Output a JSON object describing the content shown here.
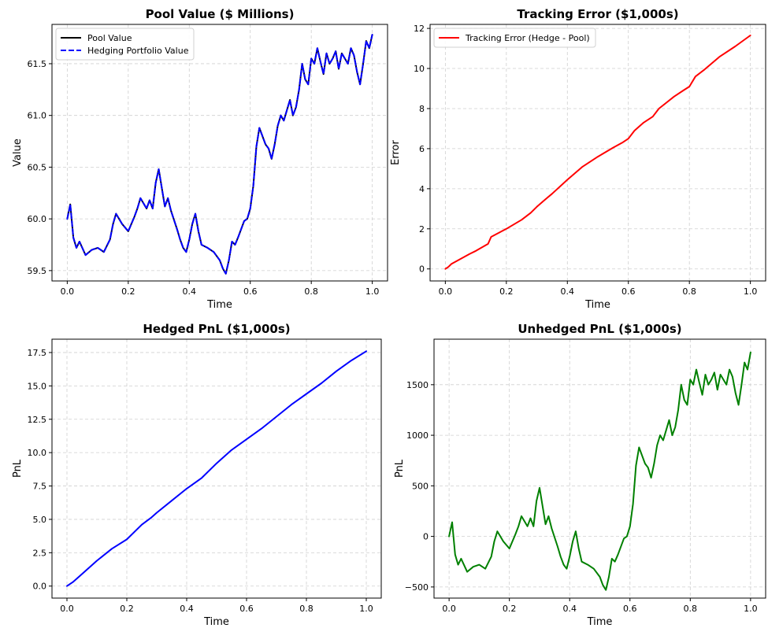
{
  "chart_data": [
    {
      "type": "line",
      "title": "Pool Value ($ Millions)",
      "xlabel": "Time",
      "ylabel": "Value",
      "xlim": [
        -0.05,
        1.05
      ],
      "ylim": [
        59.4,
        61.88
      ],
      "xticks": [
        0.0,
        0.2,
        0.4,
        0.6,
        0.8,
        1.0
      ],
      "xtick_labels": [
        "0.0",
        "0.2",
        "0.4",
        "0.6",
        "0.8",
        "1.0"
      ],
      "yticks": [
        59.5,
        60.0,
        60.5,
        61.0,
        61.5
      ],
      "ytick_labels": [
        "59.5",
        "60.0",
        "60.5",
        "61.0",
        "61.5"
      ],
      "grid": true,
      "legend_position": "top-left",
      "series": [
        {
          "name": "Pool Value",
          "color": "#000000",
          "style": "solid",
          "x": [
            0.0,
            0.01,
            0.02,
            0.03,
            0.04,
            0.06,
            0.08,
            0.1,
            0.12,
            0.14,
            0.15,
            0.16,
            0.18,
            0.2,
            0.22,
            0.23,
            0.24,
            0.26,
            0.27,
            0.28,
            0.29,
            0.3,
            0.31,
            0.32,
            0.33,
            0.34,
            0.36,
            0.37,
            0.38,
            0.39,
            0.4,
            0.41,
            0.42,
            0.43,
            0.44,
            0.46,
            0.48,
            0.5,
            0.51,
            0.52,
            0.53,
            0.54,
            0.55,
            0.56,
            0.58,
            0.59,
            0.6,
            0.61,
            0.62,
            0.63,
            0.64,
            0.65,
            0.66,
            0.67,
            0.68,
            0.69,
            0.7,
            0.71,
            0.72,
            0.73,
            0.74,
            0.75,
            0.76,
            0.77,
            0.78,
            0.79,
            0.8,
            0.81,
            0.82,
            0.83,
            0.84,
            0.85,
            0.86,
            0.87,
            0.88,
            0.89,
            0.9,
            0.91,
            0.92,
            0.93,
            0.94,
            0.95,
            0.96,
            0.97,
            0.98,
            0.99,
            1.0
          ],
          "y": [
            60.0,
            60.14,
            59.82,
            59.72,
            59.78,
            59.65,
            59.7,
            59.72,
            59.68,
            59.8,
            59.95,
            60.05,
            59.95,
            59.88,
            60.02,
            60.1,
            60.2,
            60.1,
            60.18,
            60.1,
            60.35,
            60.48,
            60.3,
            60.12,
            60.2,
            60.08,
            59.9,
            59.8,
            59.72,
            59.68,
            59.8,
            59.95,
            60.05,
            59.88,
            59.75,
            59.72,
            59.68,
            59.6,
            59.52,
            59.47,
            59.6,
            59.78,
            59.75,
            59.82,
            59.98,
            60.0,
            60.1,
            60.32,
            60.7,
            60.88,
            60.8,
            60.72,
            60.68,
            60.58,
            60.72,
            60.9,
            61.0,
            60.95,
            61.05,
            61.15,
            61.0,
            61.08,
            61.25,
            61.5,
            61.35,
            61.3,
            61.55,
            61.5,
            61.65,
            61.52,
            61.4,
            61.6,
            61.5,
            61.55,
            61.62,
            61.45,
            61.6,
            61.55,
            61.5,
            61.65,
            61.58,
            61.42,
            61.3,
            61.5,
            61.72,
            61.65,
            61.78
          ]
        },
        {
          "name": "Hedging Portfolio Value",
          "color": "#0000ff",
          "style": "dashed",
          "x": [
            0.0,
            0.01,
            0.02,
            0.03,
            0.04,
            0.06,
            0.08,
            0.1,
            0.12,
            0.14,
            0.15,
            0.16,
            0.18,
            0.2,
            0.22,
            0.23,
            0.24,
            0.26,
            0.27,
            0.28,
            0.29,
            0.3,
            0.31,
            0.32,
            0.33,
            0.34,
            0.36,
            0.37,
            0.38,
            0.39,
            0.4,
            0.41,
            0.42,
            0.43,
            0.44,
            0.46,
            0.48,
            0.5,
            0.51,
            0.52,
            0.53,
            0.54,
            0.55,
            0.56,
            0.58,
            0.59,
            0.6,
            0.61,
            0.62,
            0.63,
            0.64,
            0.65,
            0.66,
            0.67,
            0.68,
            0.69,
            0.7,
            0.71,
            0.72,
            0.73,
            0.74,
            0.75,
            0.76,
            0.77,
            0.78,
            0.79,
            0.8,
            0.81,
            0.82,
            0.83,
            0.84,
            0.85,
            0.86,
            0.87,
            0.88,
            0.89,
            0.9,
            0.91,
            0.92,
            0.93,
            0.94,
            0.95,
            0.96,
            0.97,
            0.98,
            0.99,
            1.0
          ],
          "y": [
            60.0,
            60.14,
            59.82,
            59.72,
            59.78,
            59.65,
            59.7,
            59.72,
            59.68,
            59.8,
            59.95,
            60.05,
            59.95,
            59.88,
            60.02,
            60.1,
            60.2,
            60.1,
            60.18,
            60.1,
            60.35,
            60.48,
            60.3,
            60.12,
            60.2,
            60.08,
            59.9,
            59.8,
            59.72,
            59.68,
            59.8,
            59.95,
            60.05,
            59.88,
            59.75,
            59.72,
            59.68,
            59.6,
            59.52,
            59.47,
            59.6,
            59.78,
            59.75,
            59.82,
            59.98,
            60.0,
            60.1,
            60.32,
            60.7,
            60.88,
            60.8,
            60.72,
            60.68,
            60.58,
            60.72,
            60.9,
            61.0,
            60.95,
            61.05,
            61.15,
            61.0,
            61.08,
            61.25,
            61.5,
            61.35,
            61.3,
            61.55,
            61.5,
            61.65,
            61.52,
            61.4,
            61.6,
            61.5,
            61.55,
            61.62,
            61.45,
            61.6,
            61.55,
            61.5,
            61.65,
            61.58,
            61.42,
            61.3,
            61.5,
            61.72,
            61.65,
            61.78
          ]
        }
      ]
    },
    {
      "type": "line",
      "title": "Tracking Error ($1,000s)",
      "xlabel": "Time",
      "ylabel": "Error",
      "xlim": [
        -0.05,
        1.05
      ],
      "ylim": [
        -0.6,
        12.2
      ],
      "xticks": [
        0.0,
        0.2,
        0.4,
        0.6,
        0.8,
        1.0
      ],
      "xtick_labels": [
        "0.0",
        "0.2",
        "0.4",
        "0.6",
        "0.8",
        "1.0"
      ],
      "yticks": [
        0,
        2,
        4,
        6,
        8,
        10,
        12
      ],
      "ytick_labels": [
        "0",
        "2",
        "4",
        "6",
        "8",
        "10",
        "12"
      ],
      "grid": true,
      "legend_position": "top-left",
      "series": [
        {
          "name": "Tracking Error (Hedge - Pool)",
          "color": "#ff0000",
          "style": "solid",
          "x": [
            0.0,
            0.01,
            0.02,
            0.05,
            0.08,
            0.1,
            0.14,
            0.15,
            0.2,
            0.25,
            0.28,
            0.3,
            0.33,
            0.35,
            0.4,
            0.45,
            0.5,
            0.55,
            0.58,
            0.6,
            0.62,
            0.65,
            0.68,
            0.7,
            0.75,
            0.78,
            0.8,
            0.82,
            0.85,
            0.9,
            0.95,
            1.0
          ],
          "y": [
            0.0,
            0.1,
            0.25,
            0.5,
            0.75,
            0.9,
            1.25,
            1.6,
            2.0,
            2.45,
            2.8,
            3.1,
            3.5,
            3.75,
            4.45,
            5.1,
            5.6,
            6.05,
            6.3,
            6.5,
            6.9,
            7.3,
            7.6,
            8.0,
            8.6,
            8.9,
            9.1,
            9.6,
            9.95,
            10.6,
            11.1,
            11.65
          ]
        }
      ]
    },
    {
      "type": "line",
      "title": "Hedged PnL ($1,000s)",
      "xlabel": "Time",
      "ylabel": "PnL",
      "xlim": [
        -0.05,
        1.05
      ],
      "ylim": [
        -0.9,
        18.5
      ],
      "xticks": [
        0.0,
        0.2,
        0.4,
        0.6,
        0.8,
        1.0
      ],
      "xtick_labels": [
        "0.0",
        "0.2",
        "0.4",
        "0.6",
        "0.8",
        "1.0"
      ],
      "yticks": [
        0.0,
        2.5,
        5.0,
        7.5,
        10.0,
        12.5,
        15.0,
        17.5
      ],
      "ytick_labels": [
        "0.0",
        "2.5",
        "5.0",
        "7.5",
        "10.0",
        "12.5",
        "15.0",
        "17.5"
      ],
      "grid": true,
      "series": [
        {
          "name": "",
          "color": "#0000ff",
          "style": "solid",
          "x": [
            0.0,
            0.02,
            0.05,
            0.1,
            0.15,
            0.2,
            0.25,
            0.28,
            0.3,
            0.35,
            0.4,
            0.45,
            0.5,
            0.55,
            0.6,
            0.65,
            0.7,
            0.75,
            0.8,
            0.85,
            0.9,
            0.95,
            1.0
          ],
          "y": [
            0.0,
            0.3,
            0.9,
            1.9,
            2.8,
            3.5,
            4.6,
            5.1,
            5.5,
            6.4,
            7.3,
            8.1,
            9.2,
            10.2,
            11.0,
            11.8,
            12.7,
            13.6,
            14.4,
            15.2,
            16.1,
            16.9,
            17.6
          ]
        }
      ]
    },
    {
      "type": "line",
      "title": "Unhedged PnL ($1,000s)",
      "xlabel": "Time",
      "ylabel": "PnL",
      "xlim": [
        -0.05,
        1.05
      ],
      "ylim": [
        -610,
        1950
      ],
      "xticks": [
        0.0,
        0.2,
        0.4,
        0.6,
        0.8,
        1.0
      ],
      "xtick_labels": [
        "0.0",
        "0.2",
        "0.4",
        "0.6",
        "0.8",
        "1.0"
      ],
      "yticks": [
        -500,
        0,
        500,
        1000,
        1500
      ],
      "ytick_labels": [
        "−500",
        "0",
        "500",
        "1000",
        "1500"
      ],
      "grid": true,
      "series": [
        {
          "name": "",
          "color": "#008000",
          "style": "solid",
          "x": [
            0.0,
            0.01,
            0.02,
            0.03,
            0.04,
            0.06,
            0.08,
            0.1,
            0.12,
            0.14,
            0.15,
            0.16,
            0.18,
            0.2,
            0.22,
            0.23,
            0.24,
            0.26,
            0.27,
            0.28,
            0.29,
            0.3,
            0.31,
            0.32,
            0.33,
            0.34,
            0.36,
            0.37,
            0.38,
            0.39,
            0.4,
            0.41,
            0.42,
            0.43,
            0.44,
            0.46,
            0.48,
            0.5,
            0.51,
            0.52,
            0.53,
            0.54,
            0.55,
            0.56,
            0.58,
            0.59,
            0.6,
            0.61,
            0.62,
            0.63,
            0.64,
            0.65,
            0.66,
            0.67,
            0.68,
            0.69,
            0.7,
            0.71,
            0.72,
            0.73,
            0.74,
            0.75,
            0.76,
            0.77,
            0.78,
            0.79,
            0.8,
            0.81,
            0.82,
            0.83,
            0.84,
            0.85,
            0.86,
            0.87,
            0.88,
            0.89,
            0.9,
            0.91,
            0.92,
            0.93,
            0.94,
            0.95,
            0.96,
            0.97,
            0.98,
            0.99,
            1.0
          ],
          "y": [
            0,
            140,
            -180,
            -280,
            -220,
            -350,
            -300,
            -280,
            -320,
            -200,
            -50,
            50,
            -50,
            -120,
            20,
            100,
            200,
            100,
            180,
            100,
            350,
            480,
            300,
            120,
            200,
            80,
            -100,
            -200,
            -280,
            -320,
            -200,
            -50,
            50,
            -120,
            -250,
            -280,
            -320,
            -400,
            -480,
            -530,
            -400,
            -220,
            -250,
            -180,
            -20,
            0,
            100,
            320,
            700,
            880,
            800,
            720,
            680,
            580,
            720,
            900,
            1000,
            950,
            1050,
            1150,
            1000,
            1080,
            1250,
            1500,
            1350,
            1300,
            1550,
            1500,
            1650,
            1520,
            1400,
            1600,
            1500,
            1550,
            1620,
            1450,
            1600,
            1550,
            1500,
            1650,
            1580,
            1420,
            1300,
            1500,
            1720,
            1650,
            1820
          ]
        }
      ]
    }
  ]
}
